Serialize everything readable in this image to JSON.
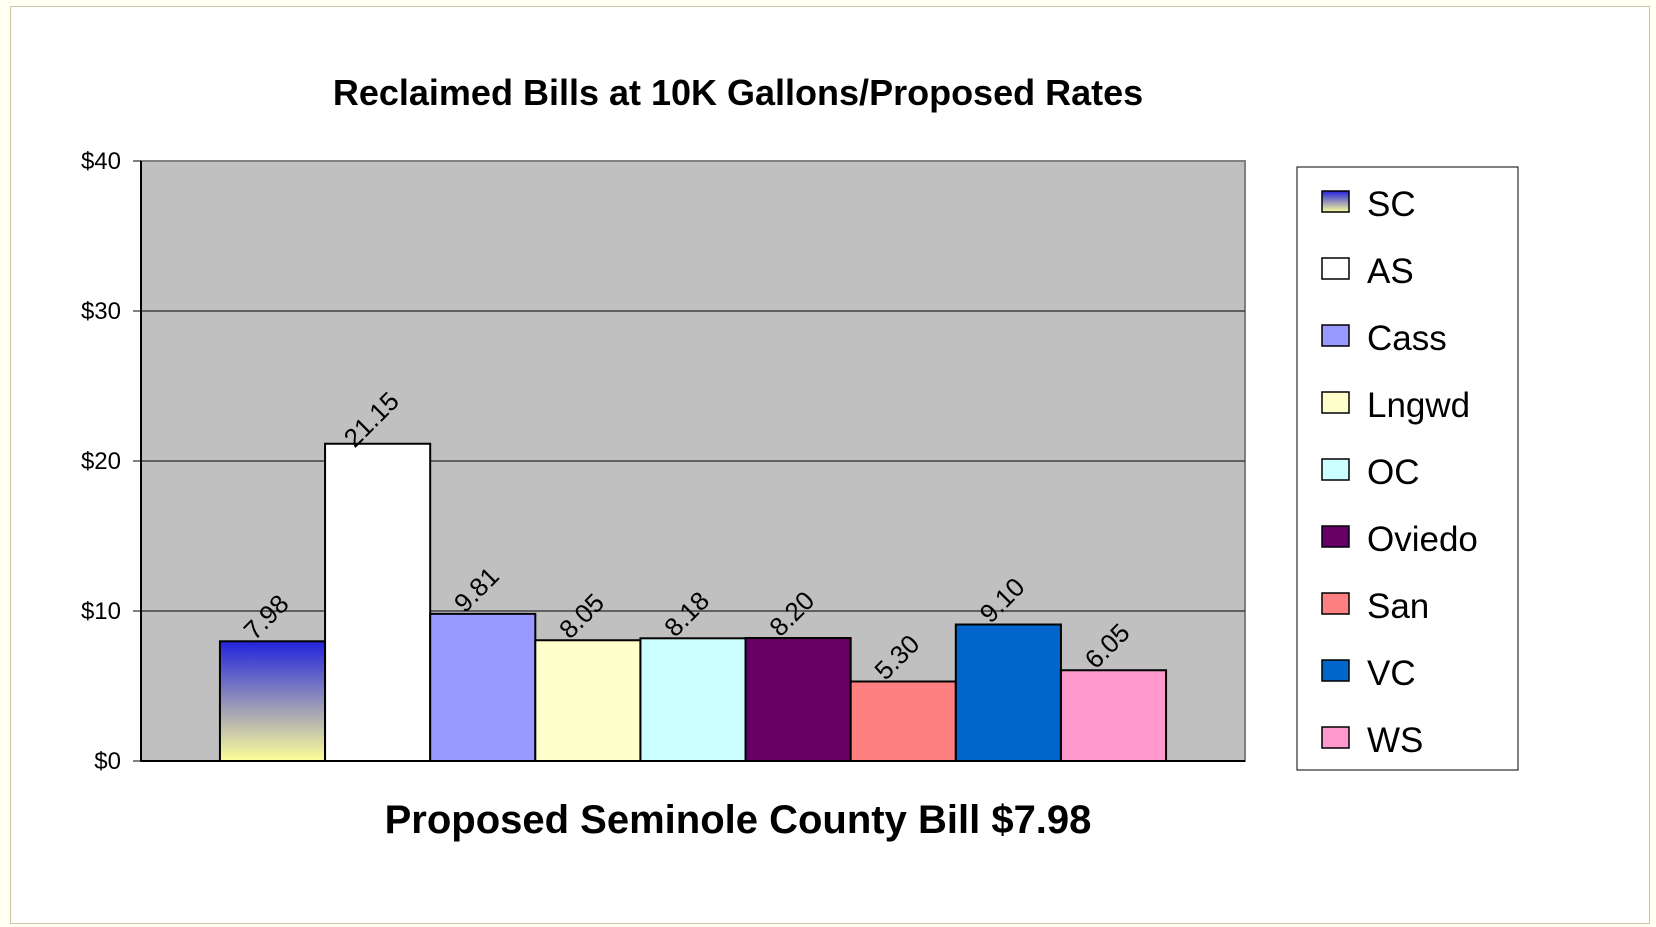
{
  "chart_data": {
    "type": "bar",
    "title": "Reclaimed Bills at 10K Gallons/Proposed Rates",
    "xlabel": "Proposed Seminole County Bill $7.98",
    "ylabel": "",
    "ylim": [
      0,
      40
    ],
    "yticks": [
      {
        "value": 0,
        "label": "$0"
      },
      {
        "value": 10,
        "label": "$10"
      },
      {
        "value": 20,
        "label": "$20"
      },
      {
        "value": 30,
        "label": "$30"
      },
      {
        "value": 40,
        "label": "$40"
      }
    ],
    "grid": true,
    "legend_position": "right",
    "plot_background": "#c0c0c0",
    "series": [
      {
        "name": "SC",
        "value": 7.98,
        "label": "7.98",
        "color": "#2222dd",
        "gradient_to": "#ffff99"
      },
      {
        "name": "AS",
        "value": 21.15,
        "label": "21.15",
        "color": "#ffffff"
      },
      {
        "name": "Cass",
        "value": 9.81,
        "label": "9.81",
        "color": "#9999ff"
      },
      {
        "name": "Lngwd",
        "value": 8.05,
        "label": "8.05",
        "color": "#ffffcc"
      },
      {
        "name": "OC",
        "value": 8.18,
        "label": "8.18",
        "color": "#ccffff"
      },
      {
        "name": "Oviedo",
        "value": 8.2,
        "label": "8.20",
        "color": "#660066"
      },
      {
        "name": "San",
        "value": 5.3,
        "label": "5.30",
        "color": "#ff8080"
      },
      {
        "name": "VC",
        "value": 9.1,
        "label": "9.10",
        "color": "#0066cc"
      },
      {
        "name": "WS",
        "value": 6.05,
        "label": "6.05",
        "color": "#ff99cc"
      }
    ]
  }
}
